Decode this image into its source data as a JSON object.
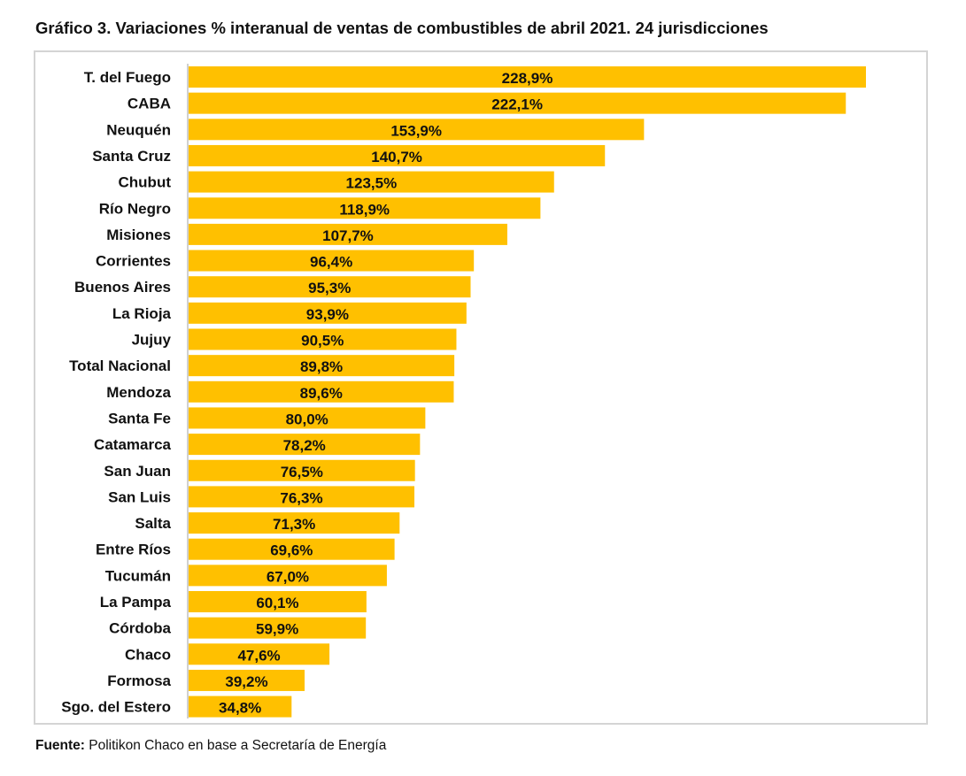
{
  "chart_data": {
    "type": "bar",
    "orientation": "horizontal",
    "title": "Gráfico 3. Variaciones % interanual de ventas de combustibles de abril 2021. 24 jurisdicciones",
    "xlabel": "",
    "ylabel": "",
    "xlim": [
      0,
      230
    ],
    "grid": false,
    "bar_color": "#FFC000",
    "categories": [
      "T. del Fuego",
      "CABA",
      "Neuquén",
      "Santa Cruz",
      "Chubut",
      "Río Negro",
      "Misiones",
      "Corrientes",
      "Buenos Aires",
      "La Rioja",
      "Jujuy",
      "Total Nacional",
      "Mendoza",
      "Santa Fe",
      "Catamarca",
      "San Juan",
      "San Luis",
      "Salta",
      "Entre Ríos",
      "Tucumán",
      "La Pampa",
      "Córdoba",
      "Chaco",
      "Formosa",
      "Sgo. del Estero"
    ],
    "values": [
      228.9,
      222.1,
      153.9,
      140.7,
      123.5,
      118.9,
      107.7,
      96.4,
      95.3,
      93.9,
      90.5,
      89.8,
      89.6,
      80.0,
      78.2,
      76.5,
      76.3,
      71.3,
      69.6,
      67.0,
      60.1,
      59.9,
      47.6,
      39.2,
      34.8
    ],
    "data_labels": [
      "228,9%",
      "222,1%",
      "153,9%",
      "140,7%",
      "123,5%",
      "118,9%",
      "107,7%",
      "96,4%",
      "95,3%",
      "93,9%",
      "90,5%",
      "89,8%",
      "89,6%",
      "80,0%",
      "78,2%",
      "76,5%",
      "76,3%",
      "71,3%",
      "69,6%",
      "67,0%",
      "60,1%",
      "59,9%",
      "47,6%",
      "39,2%",
      "34,8%"
    ]
  },
  "source": {
    "label": "Fuente:",
    "text": " Politikon Chaco en base a Secretaría de Energía"
  }
}
